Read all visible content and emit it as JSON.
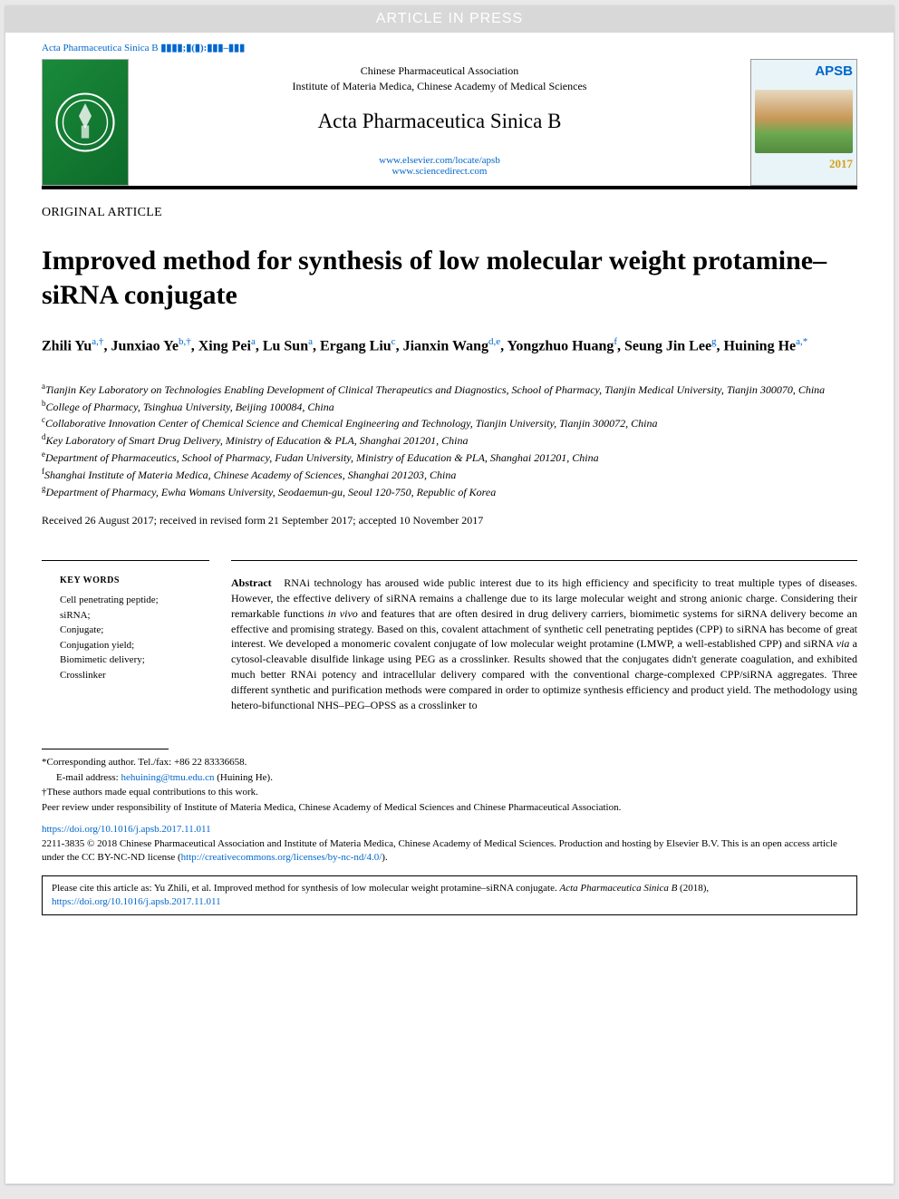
{
  "banner": {
    "text": "ARTICLE IN PRESS"
  },
  "journal_ref": {
    "name": "Acta Pharmaceutica Sinica B",
    "placeholder": "▮▮▮▮;▮(▮):▮▮▮–▮▮▮"
  },
  "header": {
    "association": "Chinese Pharmaceutical Association",
    "institute": "Institute of Materia Medica, Chinese Academy of Medical Sciences",
    "journal_title": "Acta Pharmaceutica Sinica B",
    "url1": "www.elsevier.com/locate/apsb",
    "url2": "www.sciencedirect.com",
    "cover": {
      "label": "APSB",
      "year": "2017"
    }
  },
  "article": {
    "type": "ORIGINAL ARTICLE",
    "title": "Improved method for synthesis of low molecular weight protamine–siRNA conjugate"
  },
  "authors": [
    {
      "name": "Zhili Yu",
      "aff": "a,†"
    },
    {
      "name": "Junxiao Ye",
      "aff": "b,†"
    },
    {
      "name": "Xing Pei",
      "aff": "a"
    },
    {
      "name": "Lu Sun",
      "aff": "a"
    },
    {
      "name": "Ergang Liu",
      "aff": "c"
    },
    {
      "name": "Jianxin Wang",
      "aff": "d,e"
    },
    {
      "name": "Yongzhuo Huang",
      "aff": "f"
    },
    {
      "name": "Seung Jin Lee",
      "aff": "g"
    },
    {
      "name": "Huining He",
      "aff": "a,*"
    }
  ],
  "affiliations": {
    "a": "Tianjin Key Laboratory on Technologies Enabling Development of Clinical Therapeutics and Diagnostics, School of Pharmacy, Tianjin Medical University, Tianjin 300070, China",
    "b": "College of Pharmacy, Tsinghua University, Beijing 100084, China",
    "c": "Collaborative Innovation Center of Chemical Science and Chemical Engineering and Technology, Tianjin University, Tianjin 300072, China",
    "d": "Key Laboratory of Smart Drug Delivery, Ministry of Education & PLA, Shanghai 201201, China",
    "e": "Department of Pharmaceutics, School of Pharmacy, Fudan University, Ministry of Education & PLA, Shanghai 201201, China",
    "f": "Shanghai Institute of Materia Medica, Chinese Academy of Sciences, Shanghai 201203, China",
    "g": "Department of Pharmacy, Ewha Womans University, Seodaemun-gu, Seoul 120-750, Republic of Korea"
  },
  "dates": "Received 26 August 2017; received in revised form 21 September 2017; accepted 10 November 2017",
  "keywords": {
    "heading": "KEY WORDS",
    "items": [
      "Cell penetrating peptide;",
      "siRNA;",
      "Conjugate;",
      "Conjugation yield;",
      "Biomimetic delivery;",
      "Crosslinker"
    ]
  },
  "abstract": {
    "label": "Abstract",
    "body_parts": [
      "RNAi technology has aroused wide public interest due to its high efficiency and specificity to treat multiple types of diseases. However, the effective delivery of siRNA remains a challenge due to its large molecular weight and strong anionic charge. Considering their remarkable functions ",
      "in vivo",
      " and features that are often desired in drug delivery carriers, biomimetic systems for siRNA delivery become an effective and promising strategy. Based on this, covalent attachment of synthetic cell penetrating peptides (CPP) to siRNA has become of great interest. We developed a monomeric covalent conjugate of low molecular weight protamine (LMWP, a well-established CPP) and siRNA ",
      "via",
      " a cytosol-cleavable disulfide linkage using PEG as a crosslinker. Results showed that the conjugates didn't generate coagulation, and exhibited much better RNAi potency and intracellular delivery compared with the conventional charge-complexed CPP/siRNA aggregates. Three different synthetic and purification methods were compared in order to optimize synthesis efficiency and product yield. The methodology using hetero-bifunctional NHS–PEG–OPSS as a crosslinker to"
    ]
  },
  "footnotes": {
    "corresponding": "*Corresponding author. Tel./fax: +86 22 83336658.",
    "email_label": "E-mail address:",
    "email": "hehuining@tmu.edu.cn",
    "email_name": "(Huining He).",
    "equal": "†These authors made equal contributions to this work.",
    "peer": "Peer review under responsibility of Institute of Materia Medica, Chinese Academy of Medical Sciences and Chinese Pharmaceutical Association."
  },
  "doi": "https://doi.org/10.1016/j.apsb.2017.11.011",
  "copyright": {
    "text": "2211-3835 © 2018 Chinese Pharmaceutical Association and Institute of Materia Medica, Chinese Academy of Medical Sciences. Production and hosting by Elsevier B.V. This is an open access article under the CC BY-NC-ND license (",
    "link": "http://creativecommons.org/licenses/by-nc-nd/4.0/",
    "close": ")."
  },
  "citation": {
    "prefix": "Please cite this article as: Yu Zhili, et al. Improved method for synthesis of low molecular weight protamine–siRNA conjugate. ",
    "journal": "Acta Pharmaceutica Sinica B",
    "year": " (2018), ",
    "link": "https://doi.org/10.1016/j.apsb.2017.11.011"
  },
  "colors": {
    "link": "#0066cc",
    "banner_bg": "#d8d8d8",
    "logo_green": "#1a8a3a"
  }
}
